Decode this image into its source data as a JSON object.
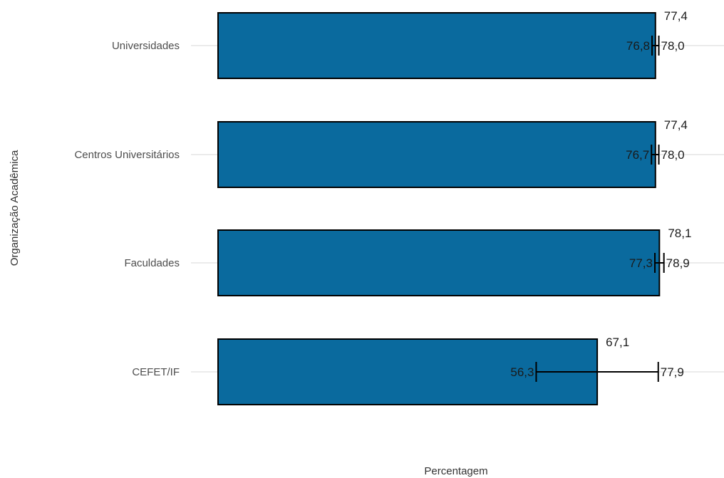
{
  "chart_data": {
    "type": "bar",
    "orientation": "horizontal",
    "xlabel": "Percentagem",
    "ylabel": "Organização Acadêmica",
    "xlim": [
      0,
      100
    ],
    "grid": true,
    "colors": {
      "bar": "#0a6a9e",
      "outline": "#000000",
      "grid": "#ebebeb"
    },
    "categories": [
      "Universidades",
      "Centros Universitários",
      "Faculdades",
      "CEFET/IF"
    ],
    "series": [
      {
        "values": [
          77.4,
          77.4,
          78.1,
          67.1
        ],
        "value_labels": [
          "77,4",
          "77,4",
          "78,1",
          "67,1"
        ],
        "lower": [
          76.8,
          76.7,
          77.3,
          56.3
        ],
        "lower_labels": [
          "76,8",
          "76,7",
          "77,3",
          "56,3"
        ],
        "upper": [
          78.0,
          78.0,
          78.9,
          77.9
        ],
        "upper_labels": [
          "78,0",
          "78,0",
          "78,9",
          "77,9"
        ]
      }
    ]
  }
}
